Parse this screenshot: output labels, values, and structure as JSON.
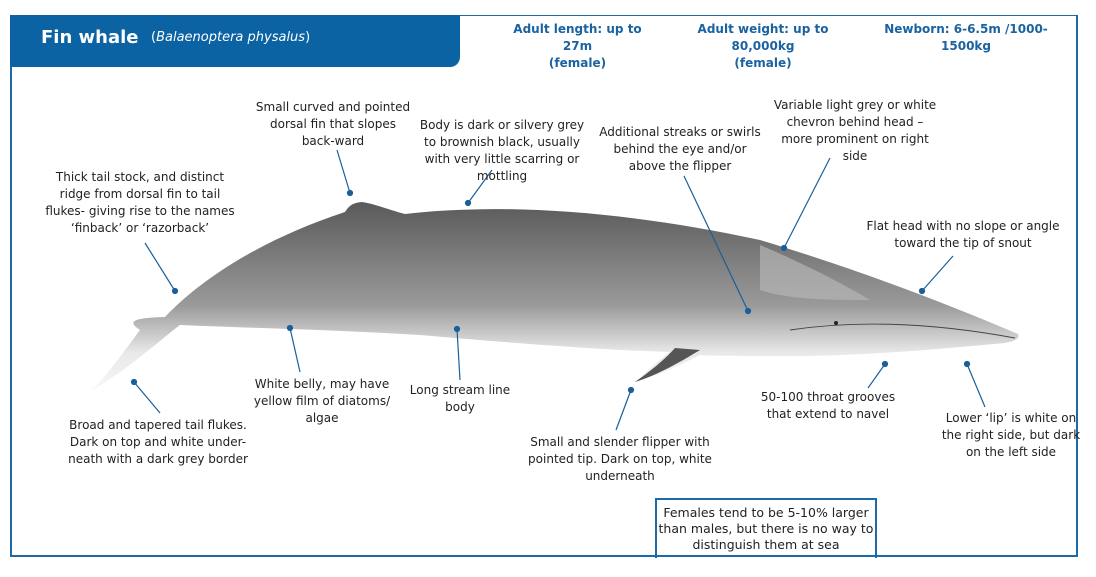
{
  "header": {
    "title": "Fin whale",
    "latin_open": "(",
    "latin": "Balaenoptera physalus",
    "latin_close": ")"
  },
  "stats": {
    "length": "Adult length: up to 27m",
    "length_note": "(female)",
    "weight": "Adult weight: up to 80,000kg",
    "weight_note": "(female)",
    "newborn": "Newborn: 6-6.5m /1000-1500kg"
  },
  "labels": {
    "dorsal_fin": "Small curved and pointed dorsal fin that slopes back-ward",
    "body_color": "Body is dark or silvery grey to brownish black, usually with very little scarring or mottling",
    "streaks": "Additional streaks or swirls behind the eye and/or above the flipper",
    "chevron": "Variable light grey or white chevron behind head – more prominent on right side",
    "flat_head": "Flat head with no slope or angle toward the tip of snout",
    "tail_stock": "Thick tail stock, and distinct ridge from dorsal fin to tail flukes- giving rise to the names ‘finback’ or ‘razorback’",
    "tail_flukes": "Broad and tapered  tail flukes. Dark on top and white under-neath with a dark grey border",
    "belly": "White belly, may have yellow film of diatoms/ algae",
    "streamline": "Long stream line body",
    "flipper": "Small and slender flipper with pointed tip. Dark on top, white underneath",
    "throat": "50-100  throat grooves that extend to navel",
    "lower_lip": "Lower ‘lip’ is white on the right side, but dark on the left side"
  },
  "note": "Females tend to be 5-10% larger than males, but there is no way to distinguish them at sea",
  "colors": {
    "brand": "#0b63a3",
    "whale_dark": "#5d5d5d",
    "whale_belly": "#f2f2f2"
  }
}
